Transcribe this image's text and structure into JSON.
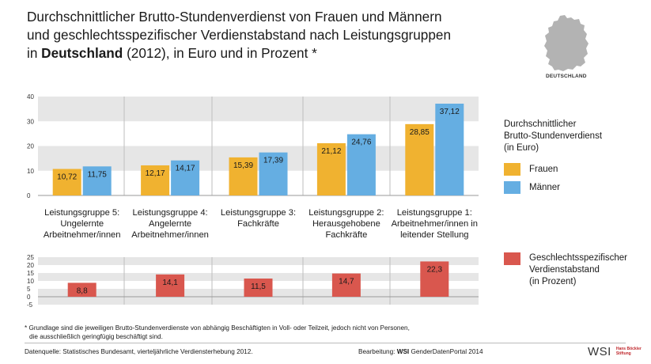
{
  "title": {
    "line1": "Durchschnittlicher Brutto-Stundenverdienst von Frauen und Männern",
    "line2": "und geschlechtsspezifischer Verdienstabstand nach Leistungsgruppen",
    "line3_prefix": "in ",
    "line3_bold": "Deutschland",
    "line3_suffix": " (2012), in Euro und in Prozent *"
  },
  "map_label": "DEUTSCHLAND",
  "colors": {
    "frauen": "#f0b230",
    "maenner": "#65aee2",
    "gap": "#d9574e",
    "band": "#e6e6e6"
  },
  "chart_data": [
    {
      "type": "bar",
      "categories": [
        "Leistungsgruppe 5: Ungelernte Arbeitnehmer/innen",
        "Leistungsgruppe 4: Angelernte Arbeitnehmer/innen",
        "Leistungsgruppe 3: Fachkräfte",
        "Leistungsgruppe 2: Herausgehobene Fachkräfte",
        "Leistungsgruppe 1: Arbeitnehmer/innen in leitender Stellung"
      ],
      "series": [
        {
          "name": "Frauen",
          "values": [
            10.72,
            12.17,
            15.39,
            21.12,
            28.85
          ],
          "labels": [
            "10,72",
            "12,17",
            "15,39",
            "21,12",
            "28,85"
          ]
        },
        {
          "name": "Männer",
          "values": [
            11.75,
            14.17,
            17.39,
            24.76,
            37.12
          ],
          "labels": [
            "11,75",
            "14,17",
            "17,39",
            "24,76",
            "37,12"
          ]
        }
      ],
      "ylim": [
        0,
        40
      ],
      "yticks": [
        "0",
        "10",
        "20",
        "30",
        "40"
      ]
    },
    {
      "type": "bar",
      "categories": [
        "Leistungsgruppe 5",
        "Leistungsgruppe 4",
        "Leistungsgruppe 3",
        "Leistungsgruppe 2",
        "Leistungsgruppe 1"
      ],
      "series": [
        {
          "name": "Geschlechtsspezifischer Verdienstabstand (in Prozent)",
          "values": [
            8.8,
            14.1,
            11.5,
            14.7,
            22.3
          ],
          "labels": [
            "8,8",
            "14,1",
            "11,5",
            "14,7",
            "22,3"
          ]
        }
      ],
      "ylim": [
        -5,
        25
      ],
      "yticks": [
        "-5",
        "0",
        "5",
        "10",
        "15",
        "20",
        "25"
      ]
    }
  ],
  "category_labels": [
    [
      "Leistungsgruppe 5:",
      "Ungelernte",
      "Arbeitnehmer/innen"
    ],
    [
      "Leistungsgruppe 4:",
      "Angelernte",
      "Arbeitnehmer/innen"
    ],
    [
      "Leistungsgruppe 3:",
      "Fachkräfte"
    ],
    [
      "Leistungsgruppe 2:",
      "Herausgehobene",
      "Fachkräfte"
    ],
    [
      "Leistungsgruppe 1:",
      "Arbeitnehmer/innen in",
      "leitender Stellung"
    ]
  ],
  "legend": {
    "title_lines": [
      "Durchschnittlicher",
      "Brutto-Stundenverdienst",
      "(in Euro)"
    ],
    "frauen": "Frauen",
    "maenner": "Männer",
    "gap_lines": [
      "Geschlechtsspezifischer",
      "Verdienstabstand",
      "(in Prozent)"
    ]
  },
  "footnote": {
    "line1": "* Grundlage sind die jeweiligen Brutto-Stundenverdienste von abhängig Beschäftigten in Voll- oder Teilzeit, jedoch nicht von Personen,",
    "line2": "die ausschließlich geringfügig beschäftigt sind."
  },
  "source": "Datenquelle: Statistisches Bundesamt, vierteljährliche Verdiensterhebung 2012.",
  "credit": {
    "prefix": "Bearbeitung: ",
    "bold": "WSI",
    "suffix": " GenderDatenPortal 2014"
  },
  "logo": {
    "wsi": "WSI",
    "hbs_line1": "Hans Böckler",
    "hbs_line2": "Stiftung"
  }
}
